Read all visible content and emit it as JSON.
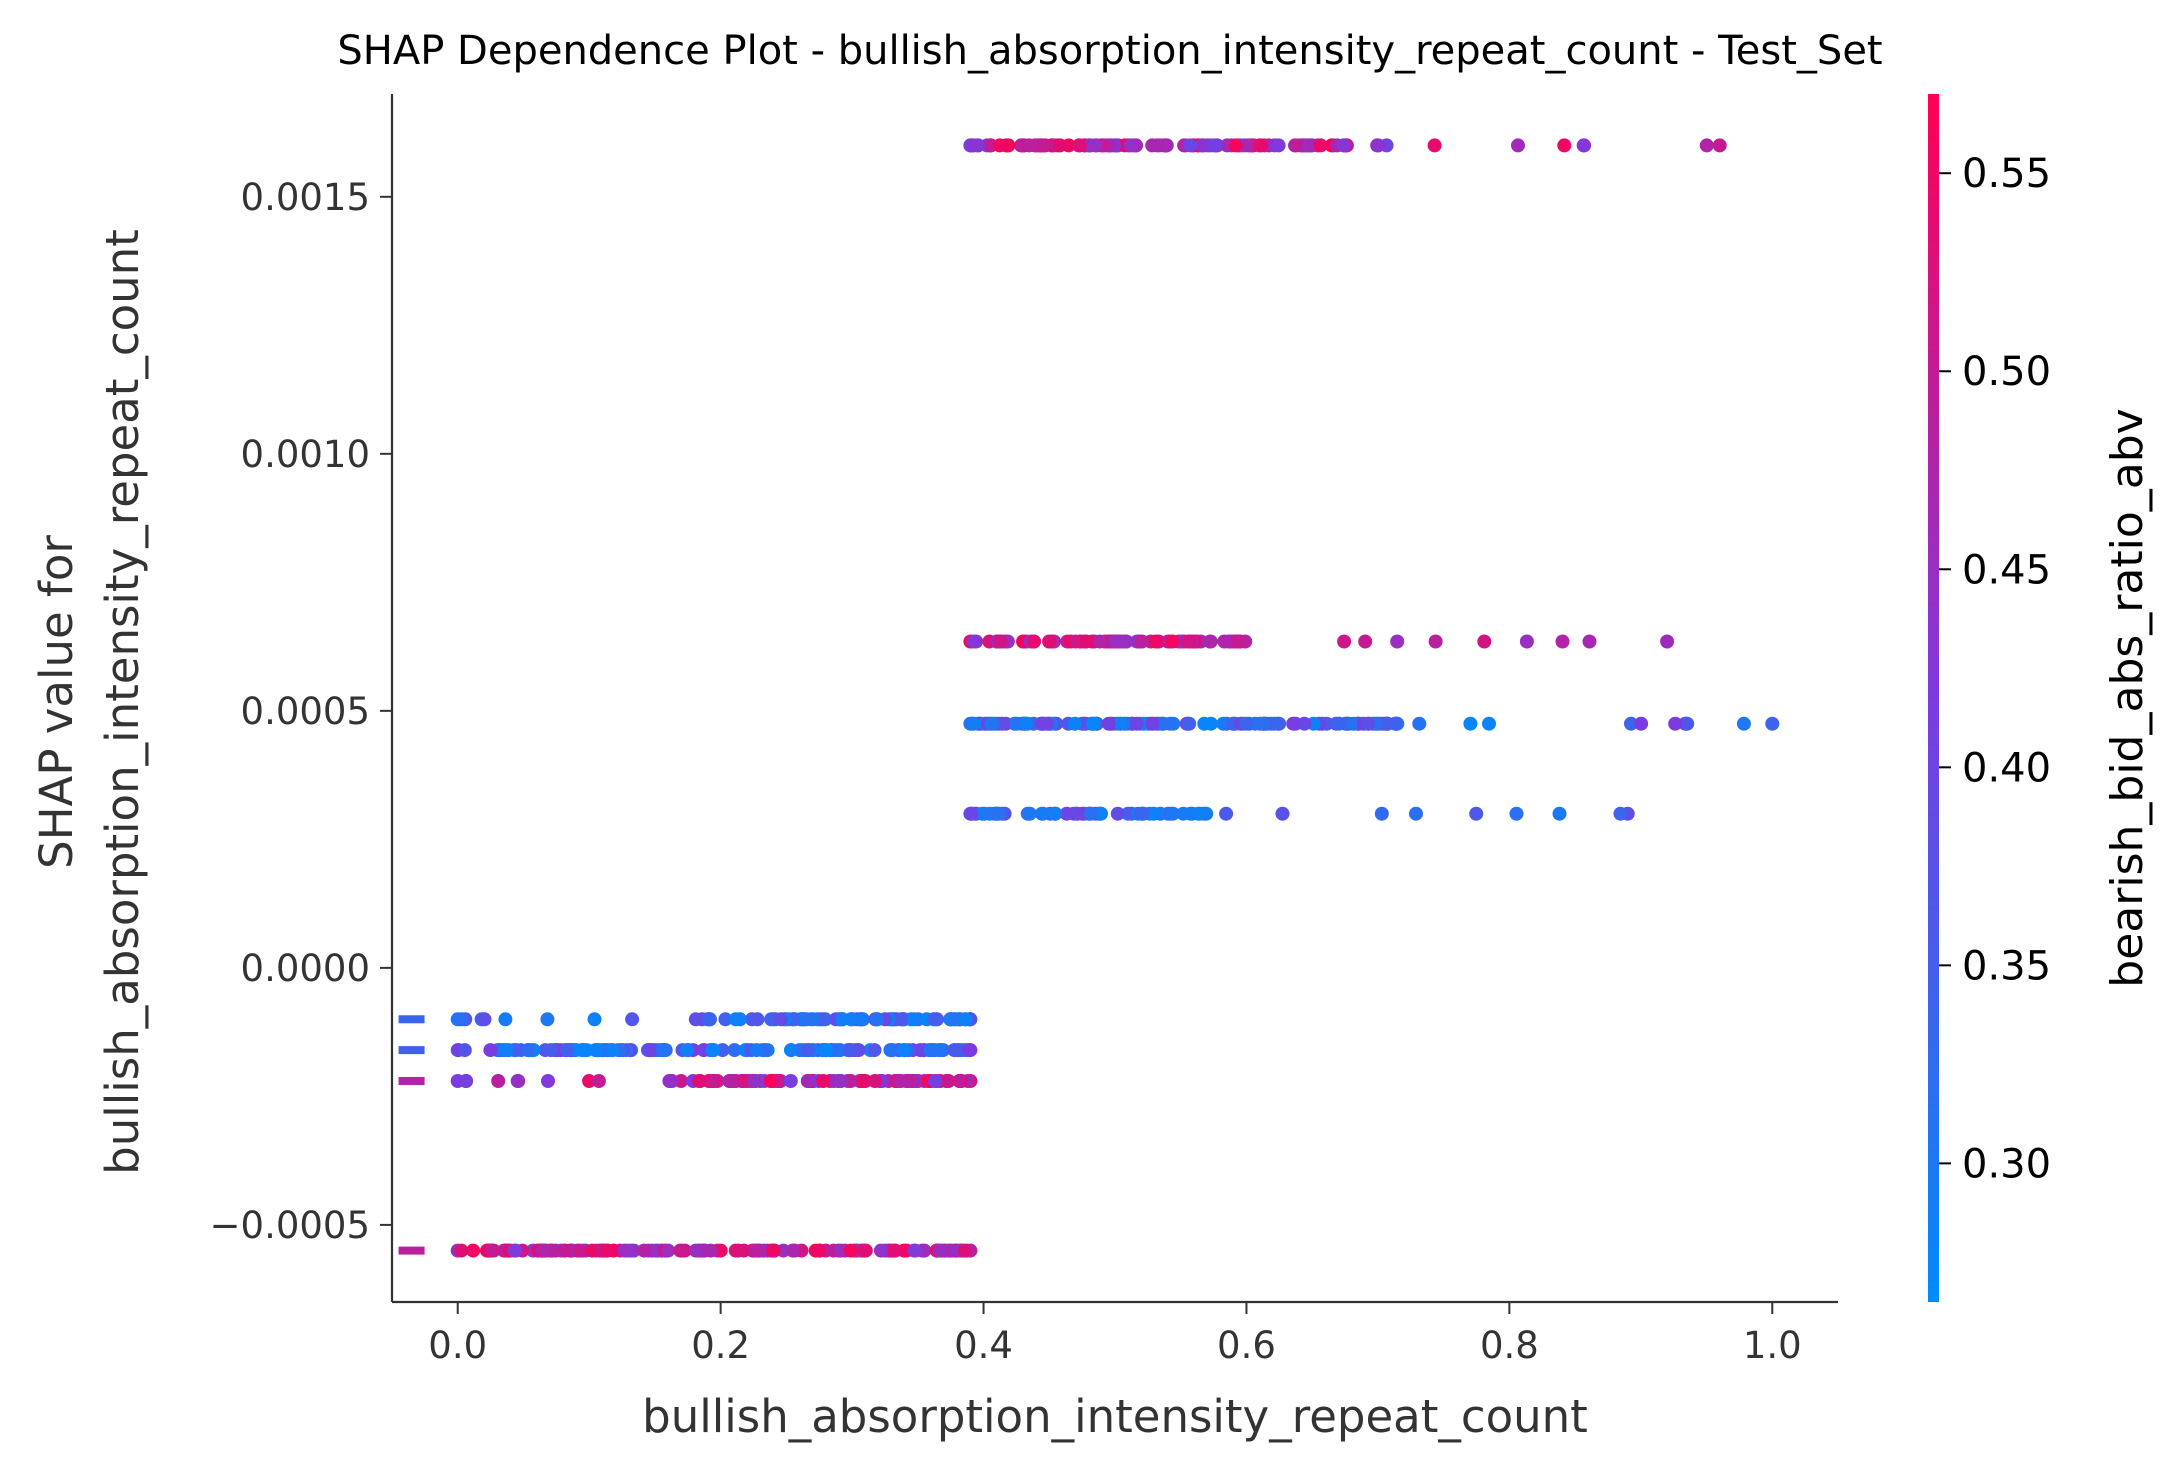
{
  "chart_data": {
    "type": "scatter",
    "title": "SHAP Dependence Plot - bullish_absorption_intensity_repeat_count - Test_Set",
    "xlabel": "bullish_absorption_intensity_repeat_count",
    "ylabel_line1": "SHAP value for",
    "ylabel_line2": "bullish_absorption_intensity_repeat_count",
    "xlim": [
      -0.05,
      1.05
    ],
    "ylim": [
      -0.00065,
      0.0017
    ],
    "xticks": [
      {
        "value": 0.0,
        "label": "0.0"
      },
      {
        "value": 0.2,
        "label": "0.2"
      },
      {
        "value": 0.4,
        "label": "0.4"
      },
      {
        "value": 0.6,
        "label": "0.6"
      },
      {
        "value": 0.8,
        "label": "0.8"
      },
      {
        "value": 1.0,
        "label": "1.0"
      }
    ],
    "yticks": [
      {
        "value": -0.0005,
        "label": "−0.0005"
      },
      {
        "value": 0.0,
        "label": "0.0000"
      },
      {
        "value": 0.0005,
        "label": "0.0005"
      },
      {
        "value": 0.001,
        "label": "0.0010"
      },
      {
        "value": 0.0015,
        "label": "0.0015"
      }
    ],
    "colorbar": {
      "label": "bearish_bid_abs_ratio_abv",
      "range": [
        0.265,
        0.57
      ],
      "low_color": "#008afb",
      "mid_color": "#7c3be0",
      "high_color": "#ff0052",
      "ticks": [
        {
          "value": 0.3,
          "label": "0.30"
        },
        {
          "value": 0.35,
          "label": "0.35"
        },
        {
          "value": 0.4,
          "label": "0.40"
        },
        {
          "value": 0.45,
          "label": "0.45"
        },
        {
          "value": 0.5,
          "label": "0.50"
        },
        {
          "value": 0.55,
          "label": "0.55"
        }
      ]
    },
    "bands": [
      {
        "y": 0.0016,
        "x_start": 0.39,
        "x_end": 0.96,
        "dense_end": 0.68,
        "count": 130,
        "color_min": 0.4,
        "color_max": 0.56
      },
      {
        "y": 0.000635,
        "x_start": 0.39,
        "x_end": 0.92,
        "dense_end": 0.6,
        "count": 95,
        "color_min": 0.42,
        "color_max": 0.56
      },
      {
        "y": 0.000475,
        "x_start": 0.39,
        "x_end": 1.0,
        "dense_end": 0.72,
        "count": 140,
        "color_min": 0.27,
        "color_max": 0.42
      },
      {
        "y": 0.0003,
        "x_start": 0.39,
        "x_end": 0.89,
        "dense_end": 0.57,
        "count": 65,
        "color_min": 0.28,
        "color_max": 0.4
      },
      {
        "y": -0.0001,
        "x_start": 0.0,
        "x_end": 0.39,
        "dense_end": 0.39,
        "dense_start": 0.18,
        "count": 95,
        "color_min": 0.27,
        "color_max": 0.4
      },
      {
        "y": -0.00016,
        "x_start": 0.0,
        "x_end": 0.39,
        "dense_end": 0.39,
        "dense_start": 0.03,
        "count": 160,
        "color_min": 0.27,
        "color_max": 0.42
      },
      {
        "y": -0.00022,
        "x_start": 0.0,
        "x_end": 0.39,
        "dense_end": 0.39,
        "dense_start": 0.16,
        "count": 110,
        "color_min": 0.4,
        "color_max": 0.56
      },
      {
        "y": -0.00055,
        "x_start": 0.0,
        "x_end": 0.39,
        "dense_end": 0.39,
        "dense_start": 0.02,
        "count": 150,
        "color_min": 0.42,
        "color_max": 0.56
      }
    ]
  }
}
